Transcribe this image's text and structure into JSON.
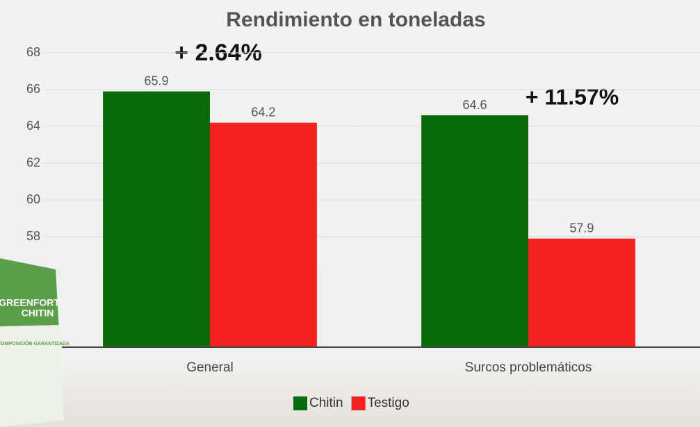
{
  "chart_data": {
    "type": "bar",
    "title": "Rendimiento en toneladas",
    "categories": [
      "General",
      "Surcos problemáticos"
    ],
    "series": [
      {
        "name": "Chitin",
        "color": "#0a6b0a",
        "values": [
          65.9,
          64.6
        ]
      },
      {
        "name": "Testigo",
        "color": "#f52222",
        "values": [
          64.2,
          57.9
        ]
      }
    ],
    "annotations": [
      "+ 2.64%",
      "+ 11.57%"
    ],
    "ylim": [
      52,
      69
    ],
    "yticks": [
      58,
      60,
      62,
      64,
      66,
      68
    ],
    "grid": true,
    "legend": "bottom"
  },
  "product": {
    "brand": "GREENFORT",
    "name": "CHITIN",
    "label": "COMPOSICIÓN GARANTIZADA"
  }
}
